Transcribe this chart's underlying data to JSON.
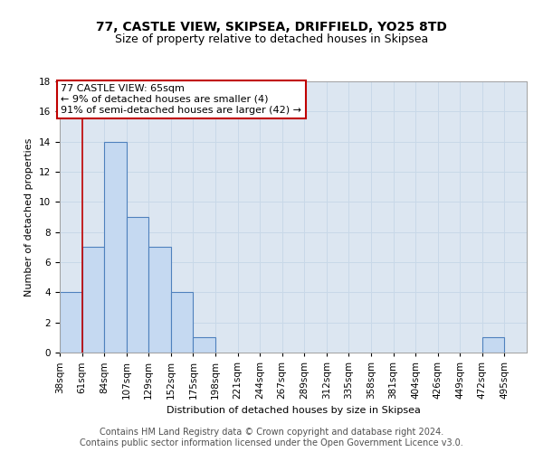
{
  "title": "77, CASTLE VIEW, SKIPSEA, DRIFFIELD, YO25 8TD",
  "subtitle": "Size of property relative to detached houses in Skipsea",
  "xlabel": "Distribution of detached houses by size in Skipsea",
  "ylabel": "Number of detached properties",
  "footer_line1": "Contains HM Land Registry data © Crown copyright and database right 2024.",
  "footer_line2": "Contains public sector information licensed under the Open Government Licence v3.0.",
  "bin_labels": [
    "38sqm",
    "61sqm",
    "84sqm",
    "107sqm",
    "129sqm",
    "152sqm",
    "175sqm",
    "198sqm",
    "221sqm",
    "244sqm",
    "267sqm",
    "289sqm",
    "312sqm",
    "335sqm",
    "358sqm",
    "381sqm",
    "404sqm",
    "426sqm",
    "449sqm",
    "472sqm",
    "495sqm"
  ],
  "bar_values": [
    4,
    7,
    14,
    9,
    7,
    4,
    1,
    0,
    0,
    0,
    0,
    0,
    0,
    0,
    0,
    0,
    0,
    0,
    0,
    1,
    0
  ],
  "bar_color": "#c5d9f1",
  "bar_edge_color": "#4f81bd",
  "reference_line_x": 1,
  "reference_line_color": "#c00000",
  "annotation_text": "77 CASTLE VIEW: 65sqm\n← 9% of detached houses are smaller (4)\n91% of semi-detached houses are larger (42) →",
  "annotation_box_color": "white",
  "annotation_box_edge_color": "#c00000",
  "ylim": [
    0,
    18
  ],
  "yticks": [
    0,
    2,
    4,
    6,
    8,
    10,
    12,
    14,
    16,
    18
  ],
  "grid_color": "#c8d8e8",
  "background_color": "#dce6f1",
  "title_fontsize": 10,
  "subtitle_fontsize": 9,
  "ylabel_fontsize": 8,
  "xlabel_fontsize": 8,
  "tick_fontsize": 7.5,
  "annot_fontsize": 8,
  "footer_fontsize": 7
}
